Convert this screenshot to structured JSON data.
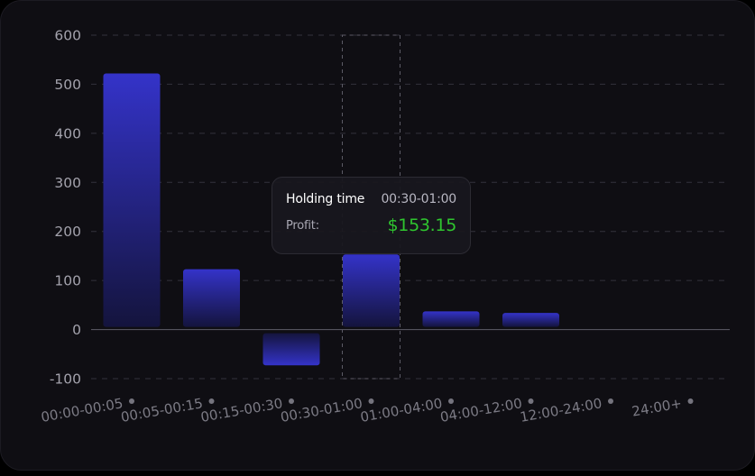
{
  "colors": {
    "bar_top": "#3433c9",
    "bar_bottom": "#14143d",
    "grid": "#33323c",
    "zero_line": "#54535d",
    "tick_text": "#a3a2ac",
    "category_text": "#7c7b85",
    "dot": "#75747e",
    "profit": "#2fc52f"
  },
  "chart_data": {
    "type": "bar",
    "categories": [
      "00:00-00:05",
      "00:05-00:15",
      "00:15-00:30",
      "00:30-01:00",
      "01:00-04:00",
      "04:00-12:00",
      "12:00-24:00",
      "24:00+"
    ],
    "values": [
      522,
      123,
      -73,
      153.15,
      37,
      34,
      0,
      0
    ],
    "y_ticks": [
      600,
      500,
      400,
      300,
      200,
      100,
      0,
      -100
    ],
    "ylim": [
      -100,
      600
    ],
    "grid": true,
    "highlighted_index": 3
  },
  "tooltip": {
    "title": "Holding time",
    "range": "00:30-01:00",
    "label": "Profit:",
    "value": "$153.15"
  }
}
